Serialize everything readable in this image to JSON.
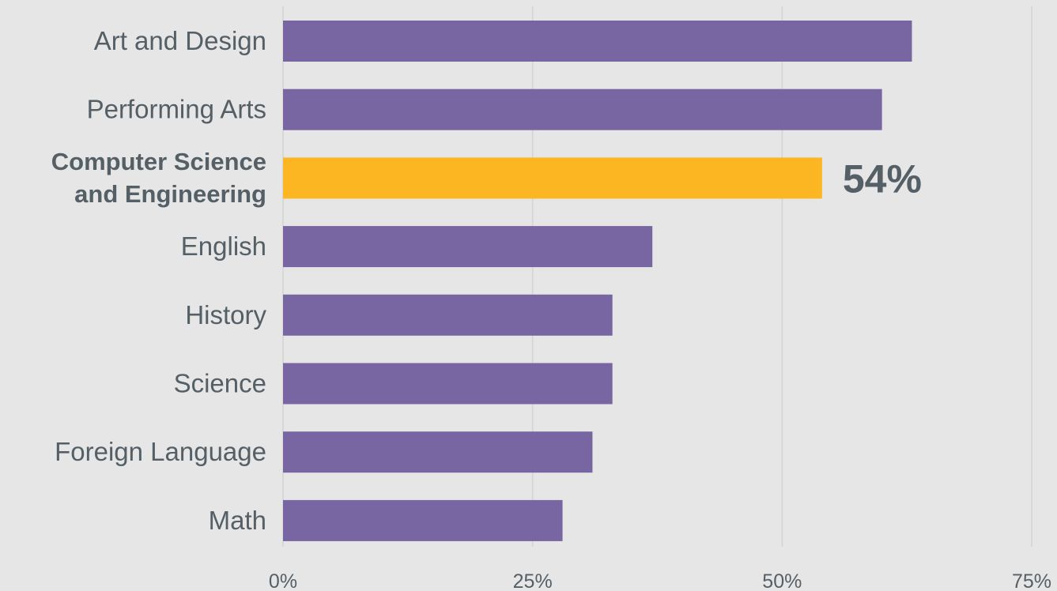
{
  "chart_data": {
    "type": "bar",
    "orientation": "horizontal",
    "categories": [
      [
        "Art and Design"
      ],
      [
        "Performing Arts"
      ],
      [
        "Computer Science",
        "and Engineering"
      ],
      [
        "English"
      ],
      [
        "History"
      ],
      [
        "Science"
      ],
      [
        "Foreign Language"
      ],
      [
        "Math"
      ]
    ],
    "values": [
      63,
      60,
      54,
      37,
      33,
      33,
      31,
      28
    ],
    "highlight_index": 2,
    "data_labels": [
      {
        "index": 2,
        "text": "54%"
      }
    ],
    "xlim": [
      0,
      75
    ],
    "xticks": [
      0,
      25,
      50,
      75
    ],
    "xtick_labels": [
      "0%",
      "25%",
      "50%",
      "75%"
    ],
    "grid": true,
    "title": "",
    "xlabel": "",
    "ylabel": "",
    "colors": {
      "bar": "#7766a1",
      "highlight_bar": "#fbb621",
      "highlight_text": "#fbb621",
      "text": "#555f66",
      "grid": "#d4d4d4",
      "background": "#e6e6e6"
    }
  }
}
